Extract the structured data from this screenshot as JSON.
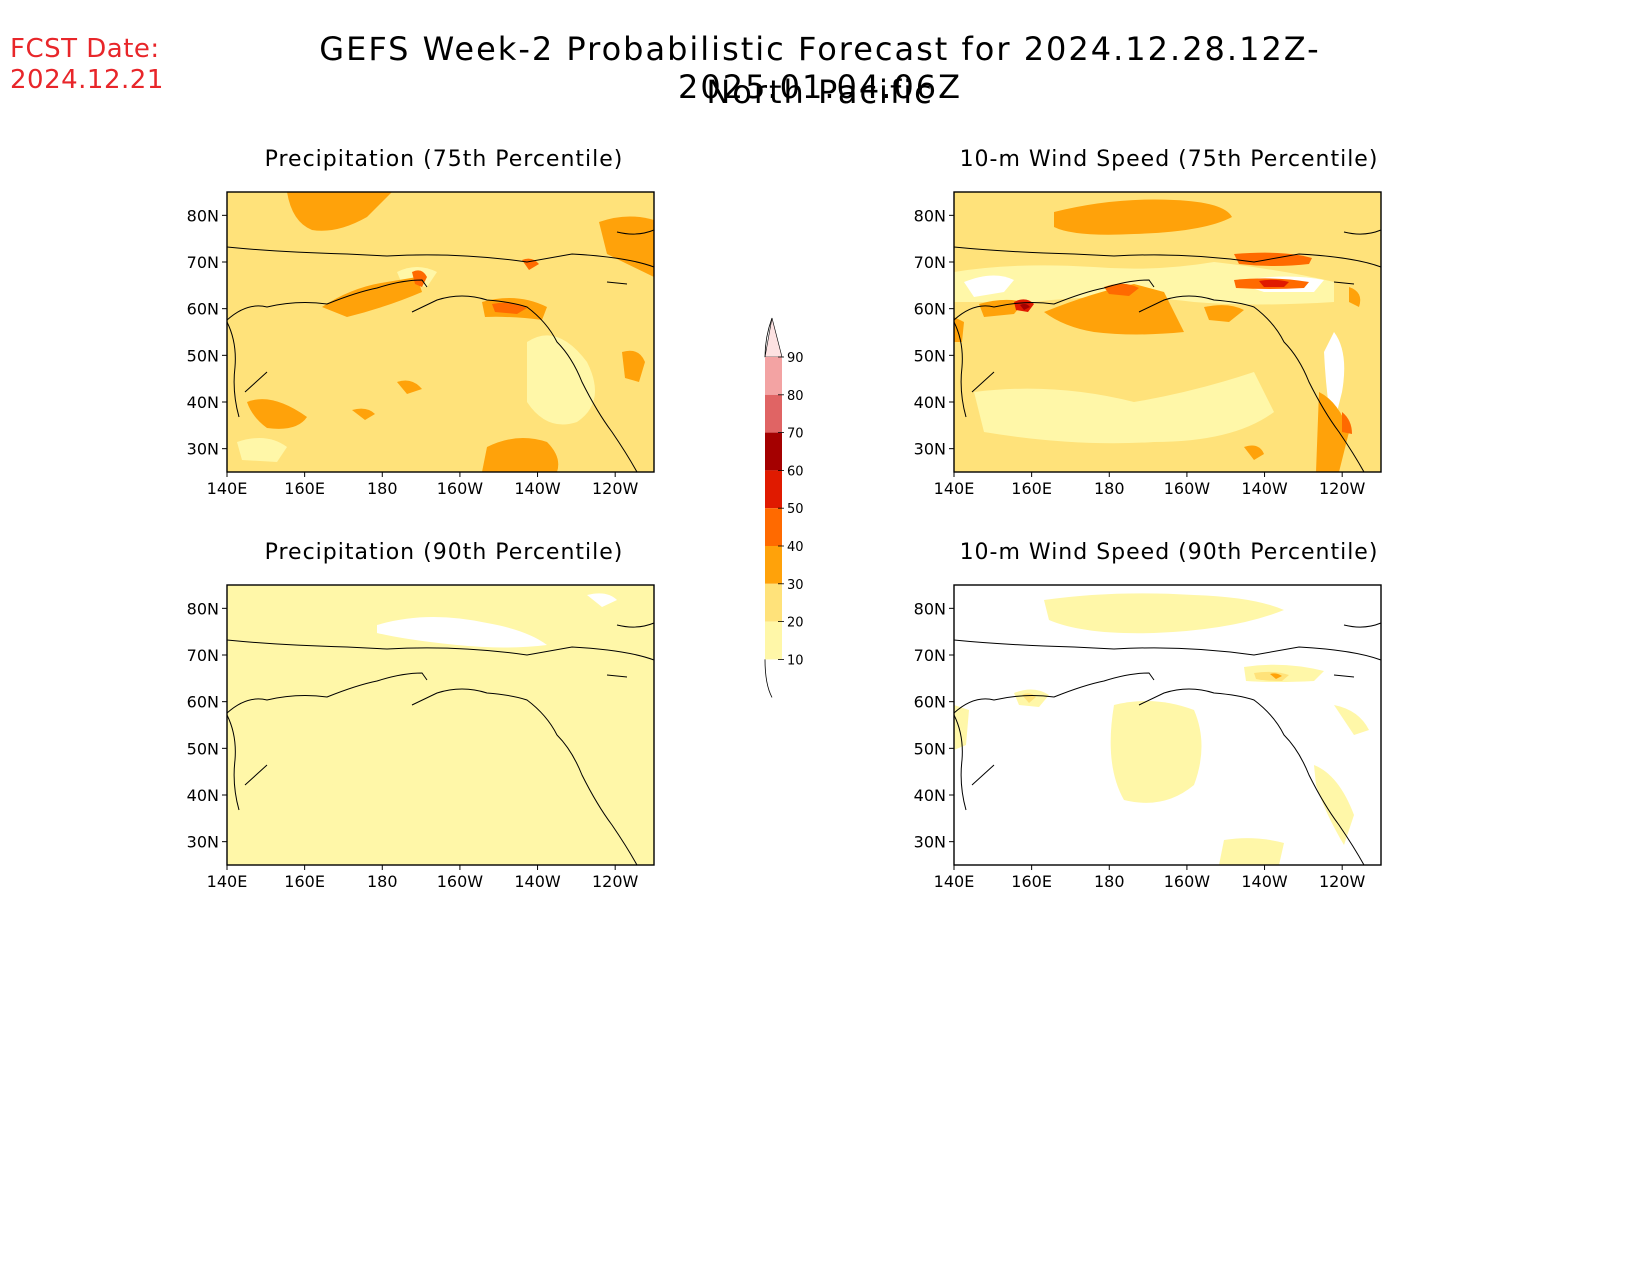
{
  "header": {
    "fcst_date_label": "FCST Date:",
    "fcst_date_value": "2024.12.21",
    "title_line1": "GEFS Week-2 Probabilistic Forecast for 2024.12.28.12Z-2025.01.04.06Z",
    "title_line2": "North Pacific"
  },
  "colors": {
    "c10_20": "#fff7a8",
    "c20_30": "#ffe27a",
    "c30_40": "#ffa20a",
    "c40_50": "#ff6a00",
    "c50_60": "#e01a00",
    "c60_70": "#a40000",
    "c70_80": "#e06464",
    "c80_90": "#f3a3a3",
    "c90": "#fde2e2",
    "coast": "#000000",
    "fcst_text": "#e8262a"
  },
  "axes": {
    "lon_ticks": [
      "140E",
      "160E",
      "180",
      "160W",
      "140W",
      "120W"
    ],
    "lat_ticks": [
      "80N",
      "70N",
      "60N",
      "50N",
      "40N",
      "30N"
    ],
    "lon_range": [
      140,
      250
    ],
    "lat_range": [
      25,
      85
    ]
  },
  "panels": [
    {
      "title": "Precipitation (75th Percentile)",
      "field": "precipitation",
      "percentile": 75,
      "dominant_band": "20-30"
    },
    {
      "title": "10-m Wind Speed (75th Percentile)",
      "field": "wind_speed",
      "percentile": 75,
      "dominant_band": "20-30"
    },
    {
      "title": "Precipitation (90th Percentile)",
      "field": "precipitation",
      "percentile": 90,
      "dominant_band": "10-20"
    },
    {
      "title": "10-m Wind Speed (90th Percentile)",
      "field": "wind_speed",
      "percentile": 90,
      "dominant_band": "0-10"
    }
  ],
  "colorbar": {
    "labels": [
      "90",
      "80",
      "70",
      "60",
      "50",
      "40",
      "30",
      "20",
      "10"
    ]
  }
}
